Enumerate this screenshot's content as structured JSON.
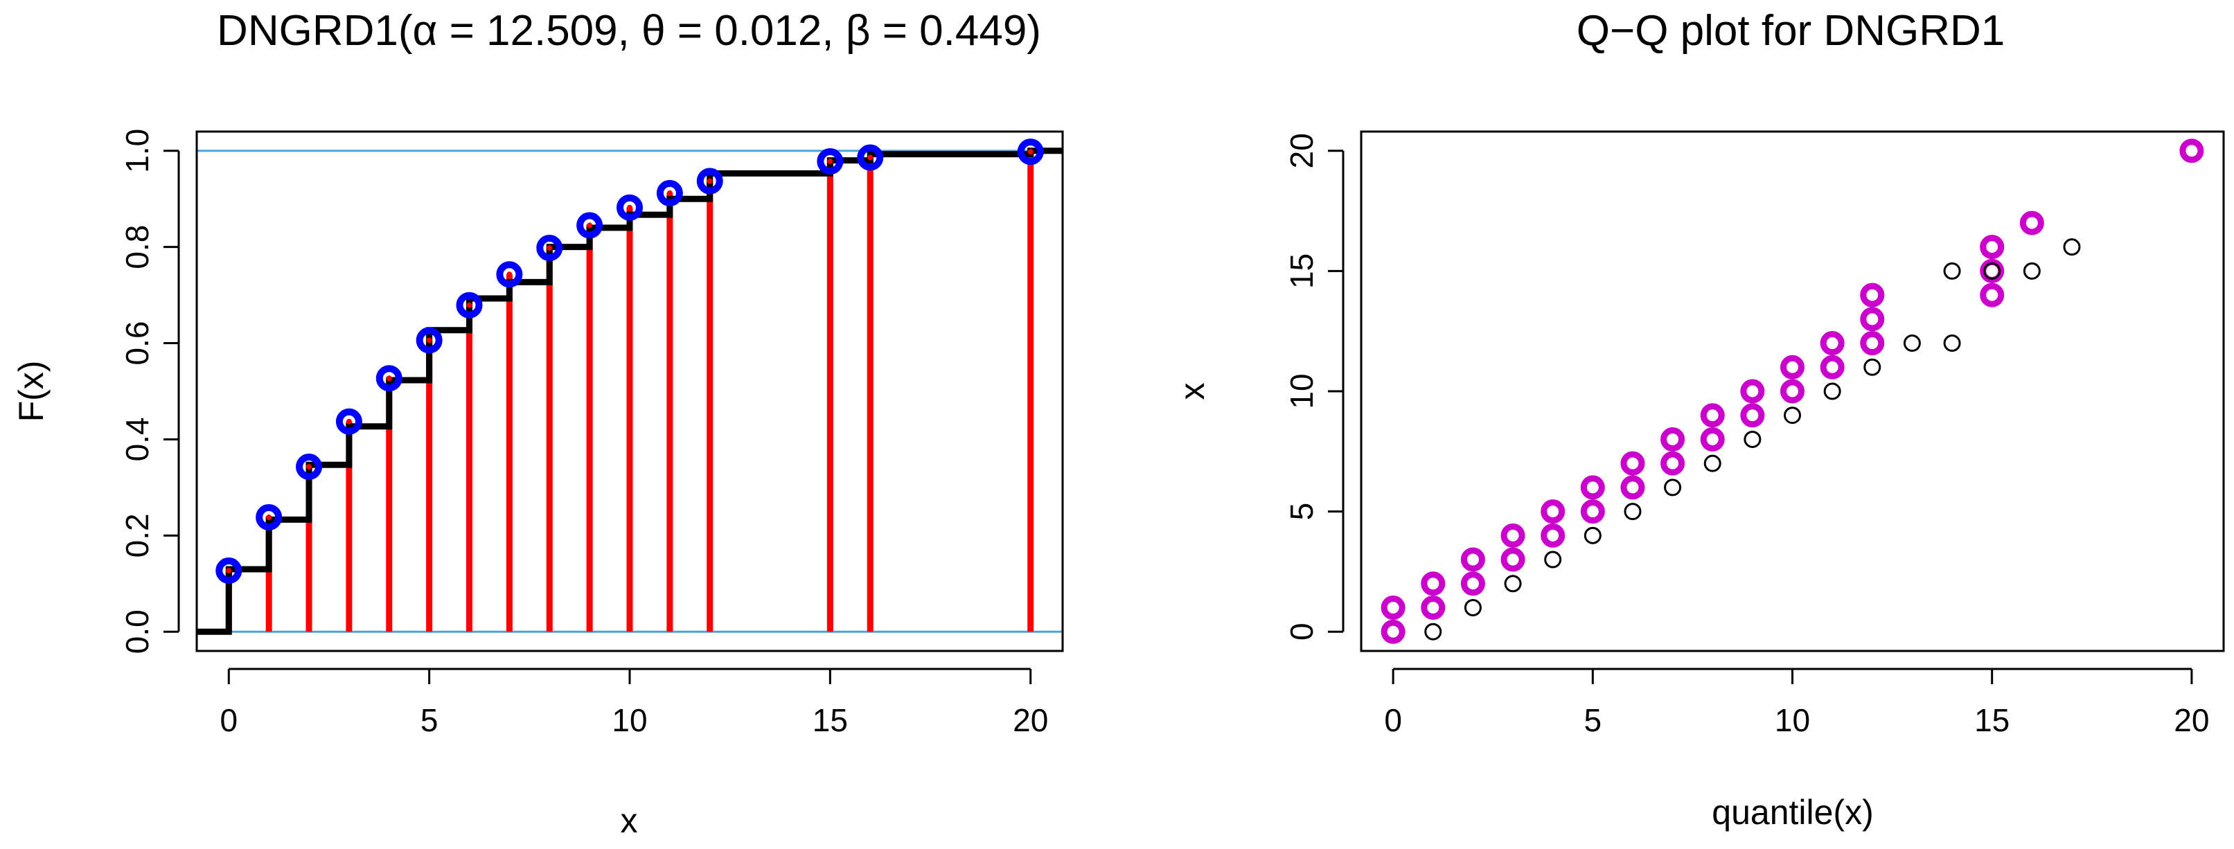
{
  "colors": {
    "ecdf_step": "#000000",
    "vertical_lines": "#ff0000",
    "fitted_points": "#0000ff",
    "fitted_points_center": "#ff0000",
    "reference_lines": "#4fa3dc",
    "qq_sample": "#cc00cc",
    "qq_theoretical": "#000000"
  },
  "chart_data": [
    {
      "type": "line",
      "title": "DNGRD1(α = 12.509, θ = 0.012, β = 0.449)",
      "xlabel": "x",
      "ylabel": "F(x)",
      "xlim": [
        -0.8,
        20.8
      ],
      "ylim": [
        -0.04,
        1.04
      ],
      "xticks": [
        "0",
        "5",
        "10",
        "15",
        "20"
      ],
      "yticks": [
        "0.0",
        "0.2",
        "0.4",
        "0.6",
        "0.8",
        "1.0"
      ],
      "reference_lines": [
        0,
        1
      ],
      "series": [
        {
          "x": [
            -1,
            0,
            1,
            2,
            3,
            4,
            5,
            6,
            7,
            8,
            9,
            10,
            11,
            12,
            15,
            16,
            20
          ],
          "y": [
            0.0,
            0.13,
            0.233,
            0.347,
            0.427,
            0.523,
            0.627,
            0.693,
            0.727,
            0.8,
            0.84,
            0.867,
            0.9,
            0.953,
            0.98,
            0.993,
            1.0
          ]
        },
        {
          "x": [
            0,
            1,
            2,
            3,
            4,
            5,
            6,
            7,
            8,
            9,
            10,
            11,
            12,
            15,
            16,
            20
          ],
          "y": [
            0.127,
            0.238,
            0.343,
            0.437,
            0.527,
            0.606,
            0.679,
            0.743,
            0.798,
            0.845,
            0.882,
            0.912,
            0.937,
            0.978,
            0.986,
            0.998
          ]
        }
      ]
    },
    {
      "type": "scatter",
      "title": "Q−Q plot for  DNGRD1",
      "xlabel": "quantile(x)",
      "ylabel": "x",
      "xlim": [
        -0.8,
        20.8
      ],
      "ylim": [
        -0.8,
        20.8
      ],
      "xticks": [
        "0",
        "5",
        "10",
        "15",
        "20"
      ],
      "yticks": [
        "0",
        "5",
        "10",
        "15",
        "20"
      ],
      "series": [
        {
          "x": [
            0,
            0,
            1,
            1,
            2,
            2,
            3,
            3,
            4,
            4,
            5,
            5,
            6,
            6,
            7,
            7,
            8,
            8,
            9,
            9,
            10,
            10,
            11,
            11,
            12,
            12,
            12,
            12,
            15,
            15,
            15,
            15,
            16,
            20
          ],
          "y": [
            0,
            1,
            1,
            2,
            2,
            3,
            3,
            4,
            4,
            5,
            5,
            6,
            6,
            7,
            7,
            8,
            8,
            9,
            9,
            10,
            10,
            11,
            11,
            12,
            12,
            13,
            14,
            14,
            14,
            15,
            16,
            16,
            17,
            20
          ]
        },
        {
          "x": [
            1,
            2,
            3,
            4,
            5,
            6,
            7,
            8,
            9,
            10,
            11,
            12,
            13,
            14,
            14,
            15,
            16,
            17
          ],
          "y": [
            0,
            1,
            2,
            3,
            4,
            5,
            6,
            7,
            8,
            9,
            10,
            11,
            12,
            12,
            15,
            15,
            15,
            16
          ]
        }
      ]
    }
  ]
}
